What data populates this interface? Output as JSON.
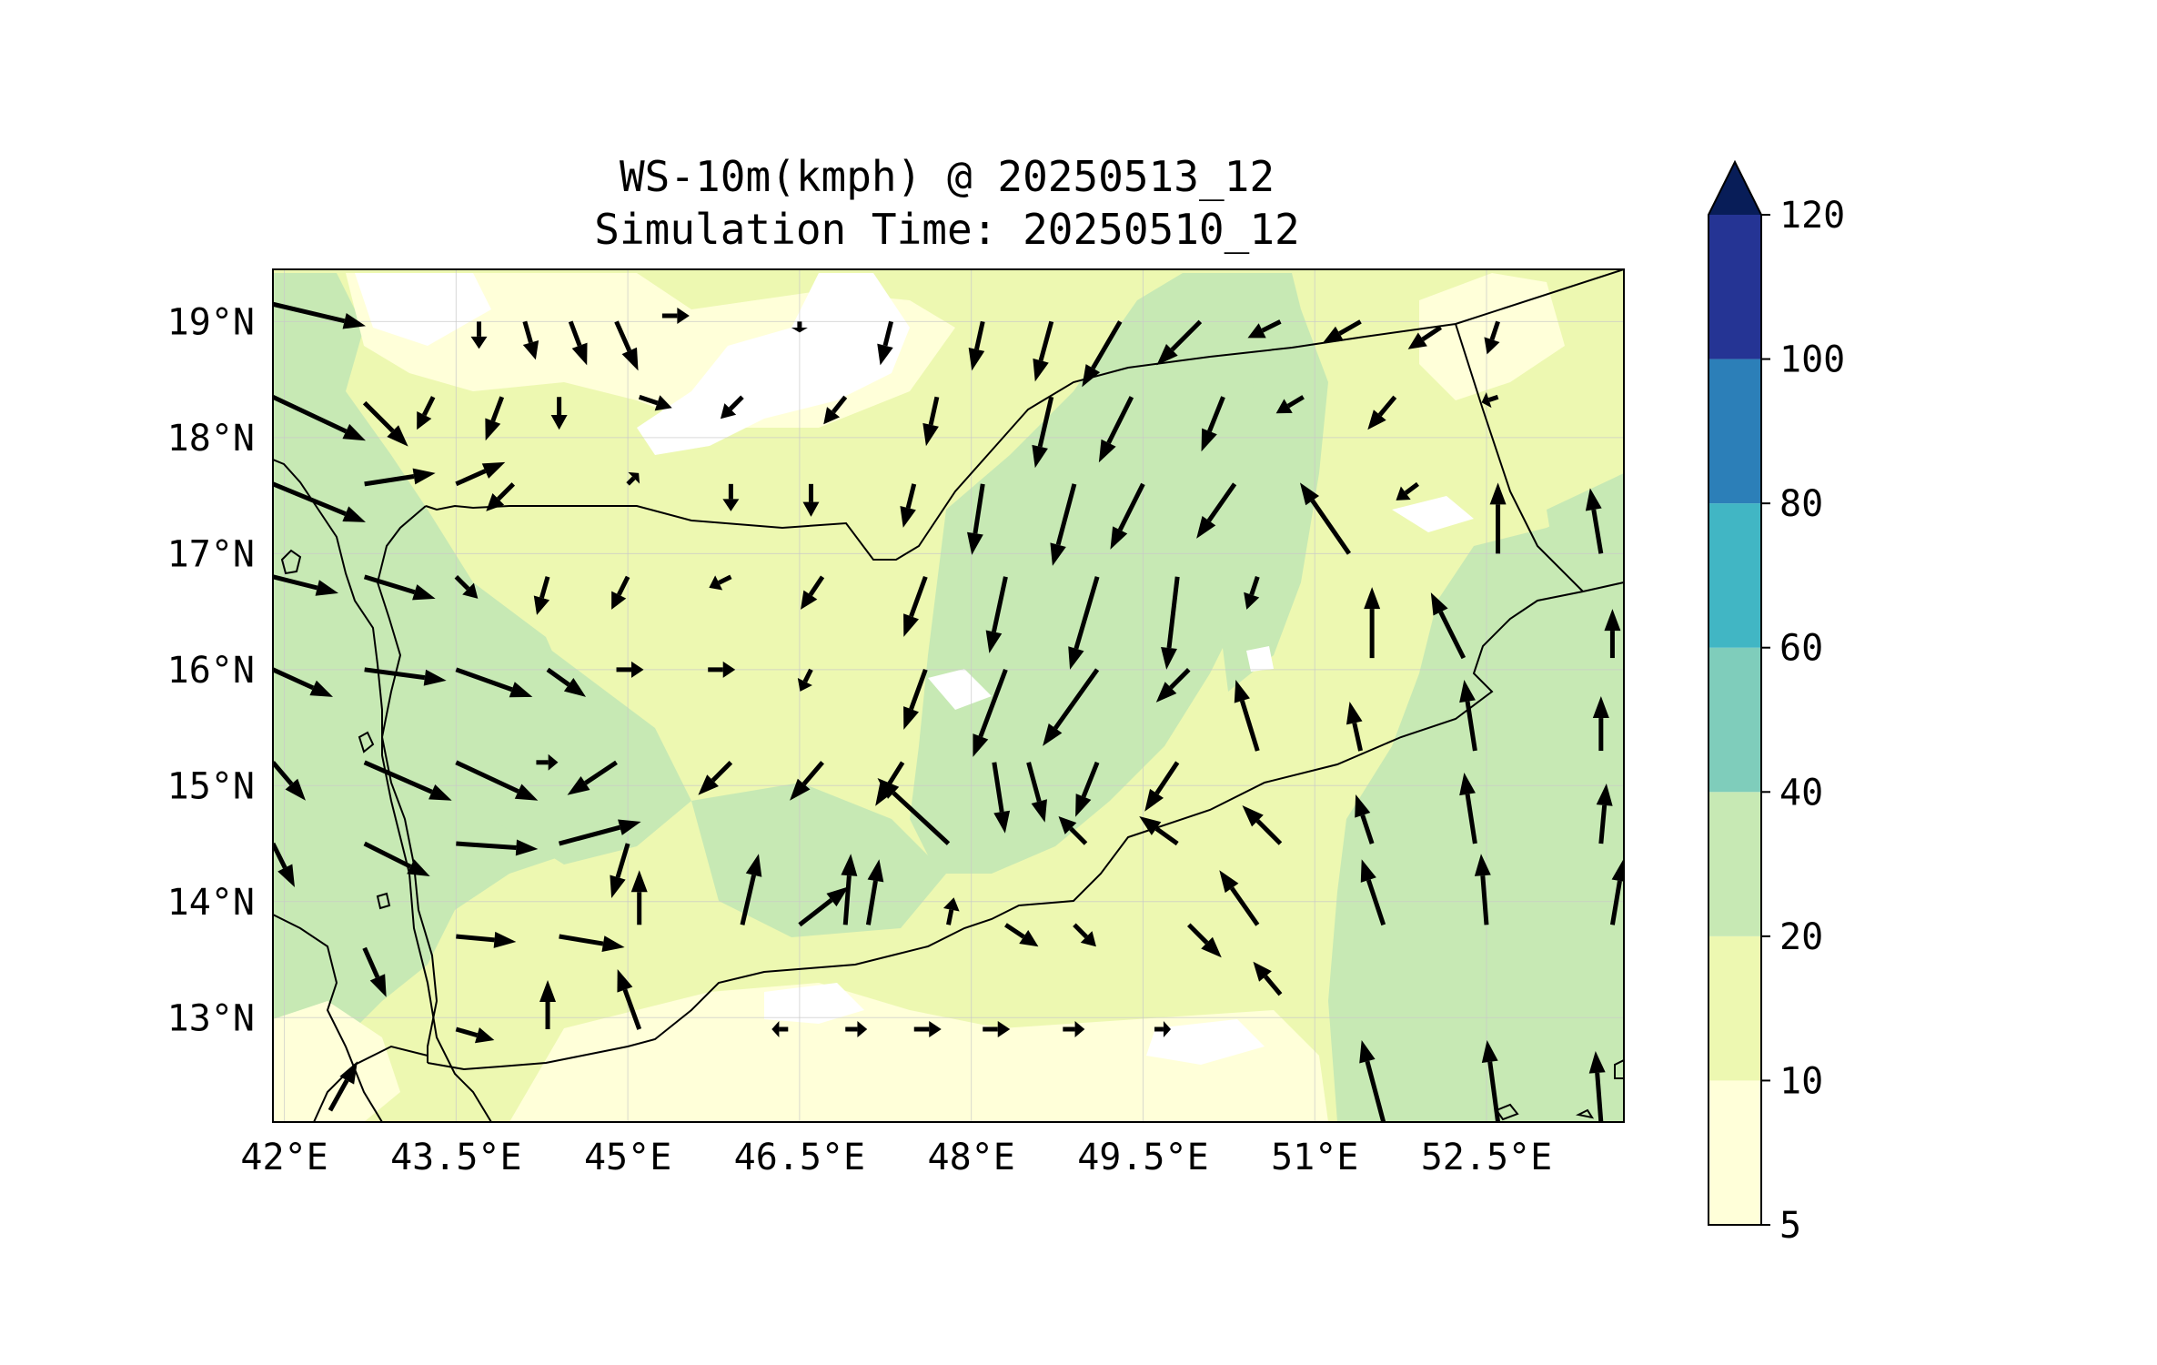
{
  "title_line1": "WS-10m(kmph) @ 20250513_12",
  "title_line2": "Simulation Time: 20250510_12",
  "x_ticks": [
    "42°E",
    "43.5°E",
    "45°E",
    "46.5°E",
    "48°E",
    "49.5°E",
    "51°E",
    "52.5°E"
  ],
  "y_ticks": [
    "19°N",
    "18°N",
    "17°N",
    "16°N",
    "15°N",
    "14°N",
    "13°N"
  ],
  "colorbar": {
    "levels": [
      5,
      10,
      20,
      40,
      60,
      80,
      100,
      120
    ],
    "labels": [
      "5",
      "10",
      "20",
      "40",
      "60",
      "80",
      "100",
      "120"
    ],
    "colors": [
      "#ffffd9",
      "#edf8b1",
      "#c7e9b4",
      "#7fcdbb",
      "#41b6c4",
      "#2c7fb8",
      "#253494"
    ],
    "extend_color": "#081d58",
    "extend": "max"
  },
  "chart_data": {
    "type": "heatmap",
    "variable": "10 m wind speed (kmph) with wind vectors",
    "title": "WS-10m(kmph) @ 20250513_12",
    "subtitle": "Simulation Time: 20250510_12",
    "x_range_lon": [
      41.9,
      53.7
    ],
    "y_range_lat": [
      12.1,
      19.45
    ],
    "x_tick_values": [
      42,
      43.5,
      45,
      46.5,
      48,
      49.5,
      51,
      52.5
    ],
    "y_tick_values": [
      19,
      18,
      17,
      16,
      15,
      14,
      13
    ],
    "grid": true,
    "colorbar_position": "right",
    "dominant_speed_band_kmph": [
      10,
      20
    ],
    "vectors": [
      {
        "lon": 41.9,
        "lat": 19.15,
        "u": 0.85,
        "v": -0.2
      },
      {
        "lon": 43.7,
        "lat": 19.0,
        "u": 0.0,
        "v": -0.25
      },
      {
        "lon": 44.1,
        "lat": 19.0,
        "u": 0.1,
        "v": -0.35
      },
      {
        "lon": 44.5,
        "lat": 19.0,
        "u": 0.15,
        "v": -0.4
      },
      {
        "lon": 44.9,
        "lat": 19.0,
        "u": 0.2,
        "v": -0.45
      },
      {
        "lon": 45.3,
        "lat": 19.05,
        "u": 0.25,
        "v": 0.0
      },
      {
        "lon": 46.5,
        "lat": 19.0,
        "u": 0.0,
        "v": -0.1
      },
      {
        "lon": 47.3,
        "lat": 19.0,
        "u": -0.1,
        "v": -0.4
      },
      {
        "lon": 48.1,
        "lat": 19.0,
        "u": -0.1,
        "v": -0.45
      },
      {
        "lon": 48.7,
        "lat": 19.0,
        "u": -0.15,
        "v": -0.55
      },
      {
        "lon": 49.3,
        "lat": 19.0,
        "u": -0.35,
        "v": -0.6
      },
      {
        "lon": 50.0,
        "lat": 19.0,
        "u": -0.4,
        "v": -0.4
      },
      {
        "lon": 50.7,
        "lat": 19.0,
        "u": -0.3,
        "v": -0.15
      },
      {
        "lon": 51.4,
        "lat": 19.0,
        "u": -0.35,
        "v": -0.2
      },
      {
        "lon": 52.1,
        "lat": 18.95,
        "u": -0.3,
        "v": -0.2
      },
      {
        "lon": 52.6,
        "lat": 19.0,
        "u": -0.1,
        "v": -0.3
      },
      {
        "lon": 41.9,
        "lat": 18.35,
        "u": 0.85,
        "v": -0.4
      },
      {
        "lon": 42.7,
        "lat": 18.3,
        "u": 0.4,
        "v": -0.4
      },
      {
        "lon": 43.3,
        "lat": 18.35,
        "u": -0.15,
        "v": -0.3
      },
      {
        "lon": 43.9,
        "lat": 18.35,
        "u": -0.15,
        "v": -0.4
      },
      {
        "lon": 44.4,
        "lat": 18.35,
        "u": 0.0,
        "v": -0.3
      },
      {
        "lon": 45.1,
        "lat": 18.35,
        "u": 0.3,
        "v": -0.1
      },
      {
        "lon": 46.0,
        "lat": 18.35,
        "u": -0.2,
        "v": -0.2
      },
      {
        "lon": 46.9,
        "lat": 18.35,
        "u": -0.2,
        "v": -0.25
      },
      {
        "lon": 47.7,
        "lat": 18.35,
        "u": -0.1,
        "v": -0.45
      },
      {
        "lon": 48.7,
        "lat": 18.35,
        "u": -0.15,
        "v": -0.65
      },
      {
        "lon": 49.4,
        "lat": 18.35,
        "u": -0.3,
        "v": -0.6
      },
      {
        "lon": 50.2,
        "lat": 18.35,
        "u": -0.2,
        "v": -0.5
      },
      {
        "lon": 50.9,
        "lat": 18.35,
        "u": -0.25,
        "v": -0.15
      },
      {
        "lon": 51.7,
        "lat": 18.35,
        "u": -0.25,
        "v": -0.3
      },
      {
        "lon": 52.6,
        "lat": 18.35,
        "u": -0.15,
        "v": -0.05
      },
      {
        "lon": 41.9,
        "lat": 17.6,
        "u": 0.85,
        "v": -0.35
      },
      {
        "lon": 42.7,
        "lat": 17.6,
        "u": 0.65,
        "v": 0.1
      },
      {
        "lon": 43.5,
        "lat": 17.6,
        "u": 0.45,
        "v": 0.2
      },
      {
        "lon": 44.0,
        "lat": 17.6,
        "u": -0.25,
        "v": -0.25
      },
      {
        "lon": 45.0,
        "lat": 17.6,
        "u": 0.1,
        "v": 0.1
      },
      {
        "lon": 45.9,
        "lat": 17.6,
        "u": 0.0,
        "v": -0.25
      },
      {
        "lon": 46.6,
        "lat": 17.6,
        "u": 0.0,
        "v": -0.3
      },
      {
        "lon": 47.5,
        "lat": 17.6,
        "u": -0.1,
        "v": -0.4
      },
      {
        "lon": 48.1,
        "lat": 17.6,
        "u": -0.1,
        "v": -0.65
      },
      {
        "lon": 48.9,
        "lat": 17.6,
        "u": -0.2,
        "v": -0.75
      },
      {
        "lon": 49.5,
        "lat": 17.6,
        "u": -0.3,
        "v": -0.6
      },
      {
        "lon": 50.3,
        "lat": 17.6,
        "u": -0.35,
        "v": -0.5
      },
      {
        "lon": 51.3,
        "lat": 17.0,
        "u": -0.45,
        "v": 0.65
      },
      {
        "lon": 51.9,
        "lat": 17.6,
        "u": -0.2,
        "v": -0.15
      },
      {
        "lon": 52.6,
        "lat": 17.0,
        "u": 0.0,
        "v": 0.65
      },
      {
        "lon": 53.5,
        "lat": 17.0,
        "u": -0.1,
        "v": 0.6
      },
      {
        "lon": 41.9,
        "lat": 16.8,
        "u": 0.6,
        "v": -0.15
      },
      {
        "lon": 42.7,
        "lat": 16.8,
        "u": 0.65,
        "v": -0.2
      },
      {
        "lon": 43.5,
        "lat": 16.8,
        "u": 0.2,
        "v": -0.2
      },
      {
        "lon": 44.3,
        "lat": 16.8,
        "u": -0.1,
        "v": -0.35
      },
      {
        "lon": 45.0,
        "lat": 16.8,
        "u": -0.15,
        "v": -0.3
      },
      {
        "lon": 45.9,
        "lat": 16.8,
        "u": -0.2,
        "v": -0.1
      },
      {
        "lon": 46.7,
        "lat": 16.8,
        "u": -0.2,
        "v": -0.3
      },
      {
        "lon": 47.6,
        "lat": 16.8,
        "u": -0.2,
        "v": -0.55
      },
      {
        "lon": 48.3,
        "lat": 16.8,
        "u": -0.15,
        "v": -0.7
      },
      {
        "lon": 49.1,
        "lat": 16.8,
        "u": -0.25,
        "v": -0.85
      },
      {
        "lon": 49.8,
        "lat": 16.8,
        "u": -0.1,
        "v": -0.85
      },
      {
        "lon": 50.5,
        "lat": 16.8,
        "u": -0.1,
        "v": -0.3
      },
      {
        "lon": 51.5,
        "lat": 16.1,
        "u": 0.0,
        "v": 0.65
      },
      {
        "lon": 52.3,
        "lat": 16.1,
        "u": -0.3,
        "v": 0.6
      },
      {
        "lon": 53.6,
        "lat": 16.1,
        "u": 0.0,
        "v": 0.45
      },
      {
        "lon": 41.9,
        "lat": 16.0,
        "u": 0.55,
        "v": -0.25
      },
      {
        "lon": 42.7,
        "lat": 16.0,
        "u": 0.75,
        "v": -0.1
      },
      {
        "lon": 43.5,
        "lat": 16.0,
        "u": 0.7,
        "v": -0.25
      },
      {
        "lon": 44.3,
        "lat": 16.0,
        "u": 0.35,
        "v": -0.25
      },
      {
        "lon": 44.9,
        "lat": 16.0,
        "u": 0.25,
        "v": 0.0
      },
      {
        "lon": 45.7,
        "lat": 16.0,
        "u": 0.25,
        "v": 0.0
      },
      {
        "lon": 46.6,
        "lat": 16.0,
        "u": -0.1,
        "v": -0.2
      },
      {
        "lon": 47.6,
        "lat": 16.0,
        "u": -0.2,
        "v": -0.55
      },
      {
        "lon": 48.3,
        "lat": 16.0,
        "u": -0.3,
        "v": -0.8
      },
      {
        "lon": 49.1,
        "lat": 16.0,
        "u": -0.5,
        "v": -0.7
      },
      {
        "lon": 49.9,
        "lat": 16.0,
        "u": -0.3,
        "v": -0.3
      },
      {
        "lon": 50.5,
        "lat": 15.3,
        "u": -0.2,
        "v": 0.65
      },
      {
        "lon": 51.4,
        "lat": 15.3,
        "u": -0.1,
        "v": 0.45
      },
      {
        "lon": 52.4,
        "lat": 15.3,
        "u": -0.1,
        "v": 0.65
      },
      {
        "lon": 53.5,
        "lat": 15.3,
        "u": 0.0,
        "v": 0.5
      },
      {
        "lon": 41.9,
        "lat": 15.2,
        "u": 0.3,
        "v": -0.35
      },
      {
        "lon": 42.7,
        "lat": 15.2,
        "u": 0.8,
        "v": -0.35
      },
      {
        "lon": 43.5,
        "lat": 15.2,
        "u": 0.75,
        "v": -0.35
      },
      {
        "lon": 44.2,
        "lat": 15.2,
        "u": 0.2,
        "v": 0.0
      },
      {
        "lon": 44.9,
        "lat": 15.2,
        "u": -0.45,
        "v": -0.3
      },
      {
        "lon": 45.9,
        "lat": 15.2,
        "u": -0.3,
        "v": -0.3
      },
      {
        "lon": 46.7,
        "lat": 15.2,
        "u": -0.3,
        "v": -0.35
      },
      {
        "lon": 47.4,
        "lat": 15.2,
        "u": -0.25,
        "v": -0.4
      },
      {
        "lon": 48.2,
        "lat": 15.2,
        "u": 0.1,
        "v": -0.65
      },
      {
        "lon": 48.5,
        "lat": 15.2,
        "u": 0.15,
        "v": -0.55
      },
      {
        "lon": 49.1,
        "lat": 15.2,
        "u": -0.2,
        "v": -0.5
      },
      {
        "lon": 49.8,
        "lat": 15.2,
        "u": -0.3,
        "v": -0.45
      },
      {
        "lon": 47.8,
        "lat": 14.5,
        "u": -0.65,
        "v": 0.6
      },
      {
        "lon": 49.0,
        "lat": 14.5,
        "u": -0.25,
        "v": 0.25
      },
      {
        "lon": 49.8,
        "lat": 14.5,
        "u": -0.35,
        "v": 0.25
      },
      {
        "lon": 50.7,
        "lat": 14.5,
        "u": -0.35,
        "v": 0.35
      },
      {
        "lon": 51.5,
        "lat": 14.5,
        "u": -0.15,
        "v": 0.45
      },
      {
        "lon": 52.4,
        "lat": 14.5,
        "u": -0.1,
        "v": 0.65
      },
      {
        "lon": 53.5,
        "lat": 14.5,
        "u": 0.05,
        "v": 0.55
      },
      {
        "lon": 41.9,
        "lat": 14.5,
        "u": 0.2,
        "v": -0.4
      },
      {
        "lon": 42.7,
        "lat": 14.5,
        "u": 0.6,
        "v": -0.3
      },
      {
        "lon": 43.5,
        "lat": 14.5,
        "u": 0.75,
        "v": -0.05
      },
      {
        "lon": 44.4,
        "lat": 14.5,
        "u": 0.75,
        "v": 0.2
      },
      {
        "lon": 45.0,
        "lat": 14.5,
        "u": -0.15,
        "v": -0.5
      },
      {
        "lon": 45.1,
        "lat": 13.8,
        "u": 0.0,
        "v": 0.5
      },
      {
        "lon": 46.0,
        "lat": 13.8,
        "u": 0.15,
        "v": 0.65
      },
      {
        "lon": 46.5,
        "lat": 13.8,
        "u": 0.45,
        "v": 0.35
      },
      {
        "lon": 46.9,
        "lat": 13.8,
        "u": 0.05,
        "v": 0.65
      },
      {
        "lon": 47.1,
        "lat": 13.8,
        "u": 0.1,
        "v": 0.6
      },
      {
        "lon": 47.8,
        "lat": 13.8,
        "u": 0.05,
        "v": 0.25
      },
      {
        "lon": 48.3,
        "lat": 13.8,
        "u": 0.3,
        "v": -0.2
      },
      {
        "lon": 48.9,
        "lat": 13.8,
        "u": 0.2,
        "v": -0.2
      },
      {
        "lon": 49.9,
        "lat": 13.8,
        "u": 0.3,
        "v": -0.3
      },
      {
        "lon": 50.5,
        "lat": 13.8,
        "u": -0.35,
        "v": 0.5
      },
      {
        "lon": 51.6,
        "lat": 13.8,
        "u": -0.2,
        "v": 0.6
      },
      {
        "lon": 52.5,
        "lat": 13.8,
        "u": -0.05,
        "v": 0.65
      },
      {
        "lon": 53.6,
        "lat": 13.8,
        "u": 0.1,
        "v": 0.6
      },
      {
        "lon": 42.7,
        "lat": 13.6,
        "u": 0.2,
        "v": -0.45
      },
      {
        "lon": 43.5,
        "lat": 13.7,
        "u": 0.55,
        "v": -0.05
      },
      {
        "lon": 44.4,
        "lat": 13.7,
        "u": 0.6,
        "v": -0.1
      },
      {
        "lon": 45.1,
        "lat": 12.9,
        "u": -0.2,
        "v": 0.55
      },
      {
        "lon": 44.3,
        "lat": 12.9,
        "u": 0.0,
        "v": 0.45
      },
      {
        "lon": 43.5,
        "lat": 12.9,
        "u": 0.35,
        "v": -0.1
      },
      {
        "lon": 42.4,
        "lat": 12.2,
        "u": 0.25,
        "v": 0.45
      },
      {
        "lon": 46.4,
        "lat": 12.9,
        "u": -0.15,
        "v": 0.0
      },
      {
        "lon": 46.9,
        "lat": 12.9,
        "u": 0.2,
        "v": 0.0
      },
      {
        "lon": 47.5,
        "lat": 12.9,
        "u": 0.25,
        "v": 0.0
      },
      {
        "lon": 48.1,
        "lat": 12.9,
        "u": 0.25,
        "v": 0.0
      },
      {
        "lon": 48.8,
        "lat": 12.9,
        "u": 0.2,
        "v": 0.0
      },
      {
        "lon": 49.6,
        "lat": 12.9,
        "u": 0.15,
        "v": 0.0
      },
      {
        "lon": 50.7,
        "lat": 13.2,
        "u": -0.25,
        "v": 0.3
      },
      {
        "lon": 51.6,
        "lat": 12.1,
        "u": -0.2,
        "v": 0.75
      },
      {
        "lon": 52.6,
        "lat": 12.1,
        "u": -0.1,
        "v": 0.75
      },
      {
        "lon": 53.5,
        "lat": 12.1,
        "u": -0.05,
        "v": 0.65
      }
    ]
  }
}
